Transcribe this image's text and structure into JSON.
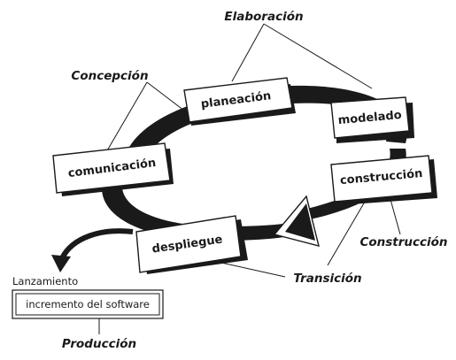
{
  "phases": {
    "elaboracion": "Elaboración",
    "concepcion": "Concepción",
    "construccion": "Construcción",
    "transicion": "Transición",
    "produccion": "Producción"
  },
  "activities": {
    "planeacion": "planeación",
    "modelado": "modelado",
    "comunicacion": "comunicación",
    "construccion": "construcción",
    "despliegue": "despliegue"
  },
  "release": {
    "title": "Lanzamiento",
    "increment": "incremento del software"
  }
}
